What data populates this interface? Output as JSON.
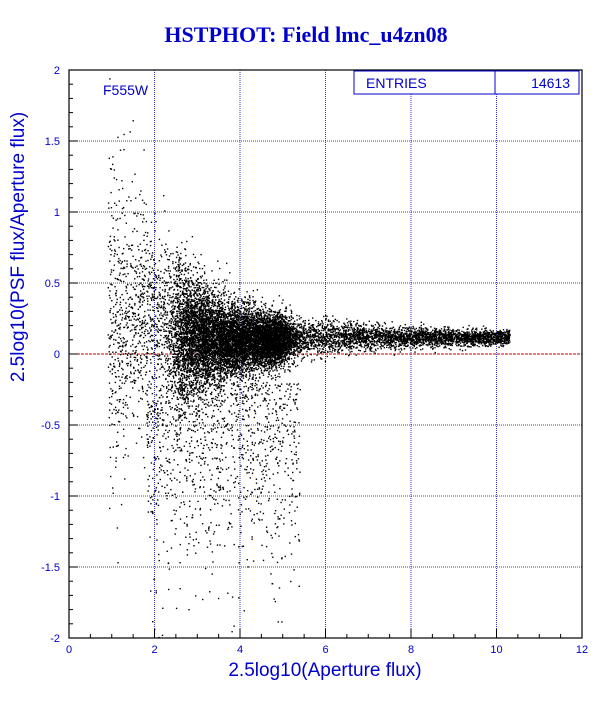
{
  "colors": {
    "accent": "#0000cc",
    "frame": "#000000",
    "grid": "#0000cc",
    "reference_line": "#cc0000",
    "points": "#000000"
  },
  "chart_data": {
    "type": "scatter",
    "title": "HSTPHOT: Field lmc_u4zn08",
    "xlabel": "2.5log10(Aperture flux)",
    "ylabel": "2.5log10(PSF flux/Aperture flux)",
    "annotation": "F555W",
    "stats": {
      "label": "ENTRIES",
      "value": "14613"
    },
    "xlim": [
      0,
      12
    ],
    "ylim": [
      -2,
      2
    ],
    "x_ticks": [
      "0",
      "2",
      "4",
      "6",
      "8",
      "10",
      "12"
    ],
    "y_ticks": [
      "-2",
      "-1.5",
      "-1",
      "-0.5",
      "0",
      "0.5",
      "1",
      "1.5",
      "2"
    ],
    "grid": true,
    "reference_line_y": 0,
    "entries": 14613,
    "distribution": {
      "x_range": [
        0.3,
        10.3
      ],
      "dense_core_x": [
        2.5,
        5.0
      ],
      "dense_core_y": [
        -0.3,
        0.4
      ],
      "tail_median_y": 0.1
    }
  }
}
